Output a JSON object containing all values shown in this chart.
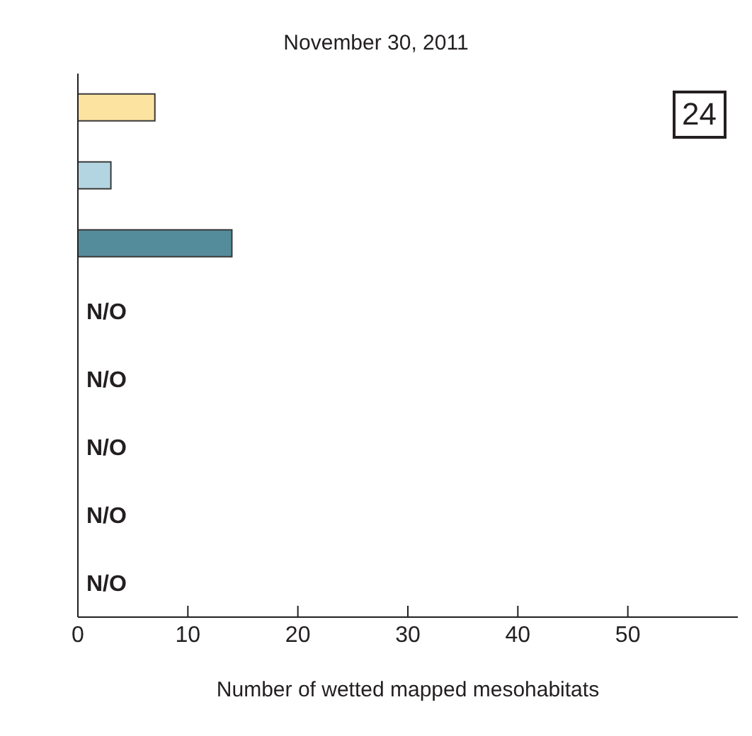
{
  "chart_data": {
    "type": "bar",
    "orientation": "horizontal",
    "title": "November 30, 2011",
    "xlabel": "Number of wetted mapped mesohabitats",
    "categories": [
      null,
      null,
      null,
      null,
      null,
      null,
      null,
      null
    ],
    "values": [
      7,
      3,
      14,
      null,
      null,
      null,
      null,
      null
    ],
    "value_labels": [
      null,
      null,
      null,
      "N/O",
      "N/O",
      "N/O",
      "N/O",
      "N/O"
    ],
    "colors": [
      "#fde3a0",
      "#b3d5e2",
      "#548c9c",
      "#231f20",
      "#231f20",
      "#231f20",
      "#231f20",
      "#231f20"
    ],
    "xlim": [
      0,
      60
    ],
    "xticks": [
      0,
      10,
      20,
      30,
      40,
      50
    ],
    "annotations": [
      "24"
    ],
    "grid": false,
    "legend": false
  }
}
